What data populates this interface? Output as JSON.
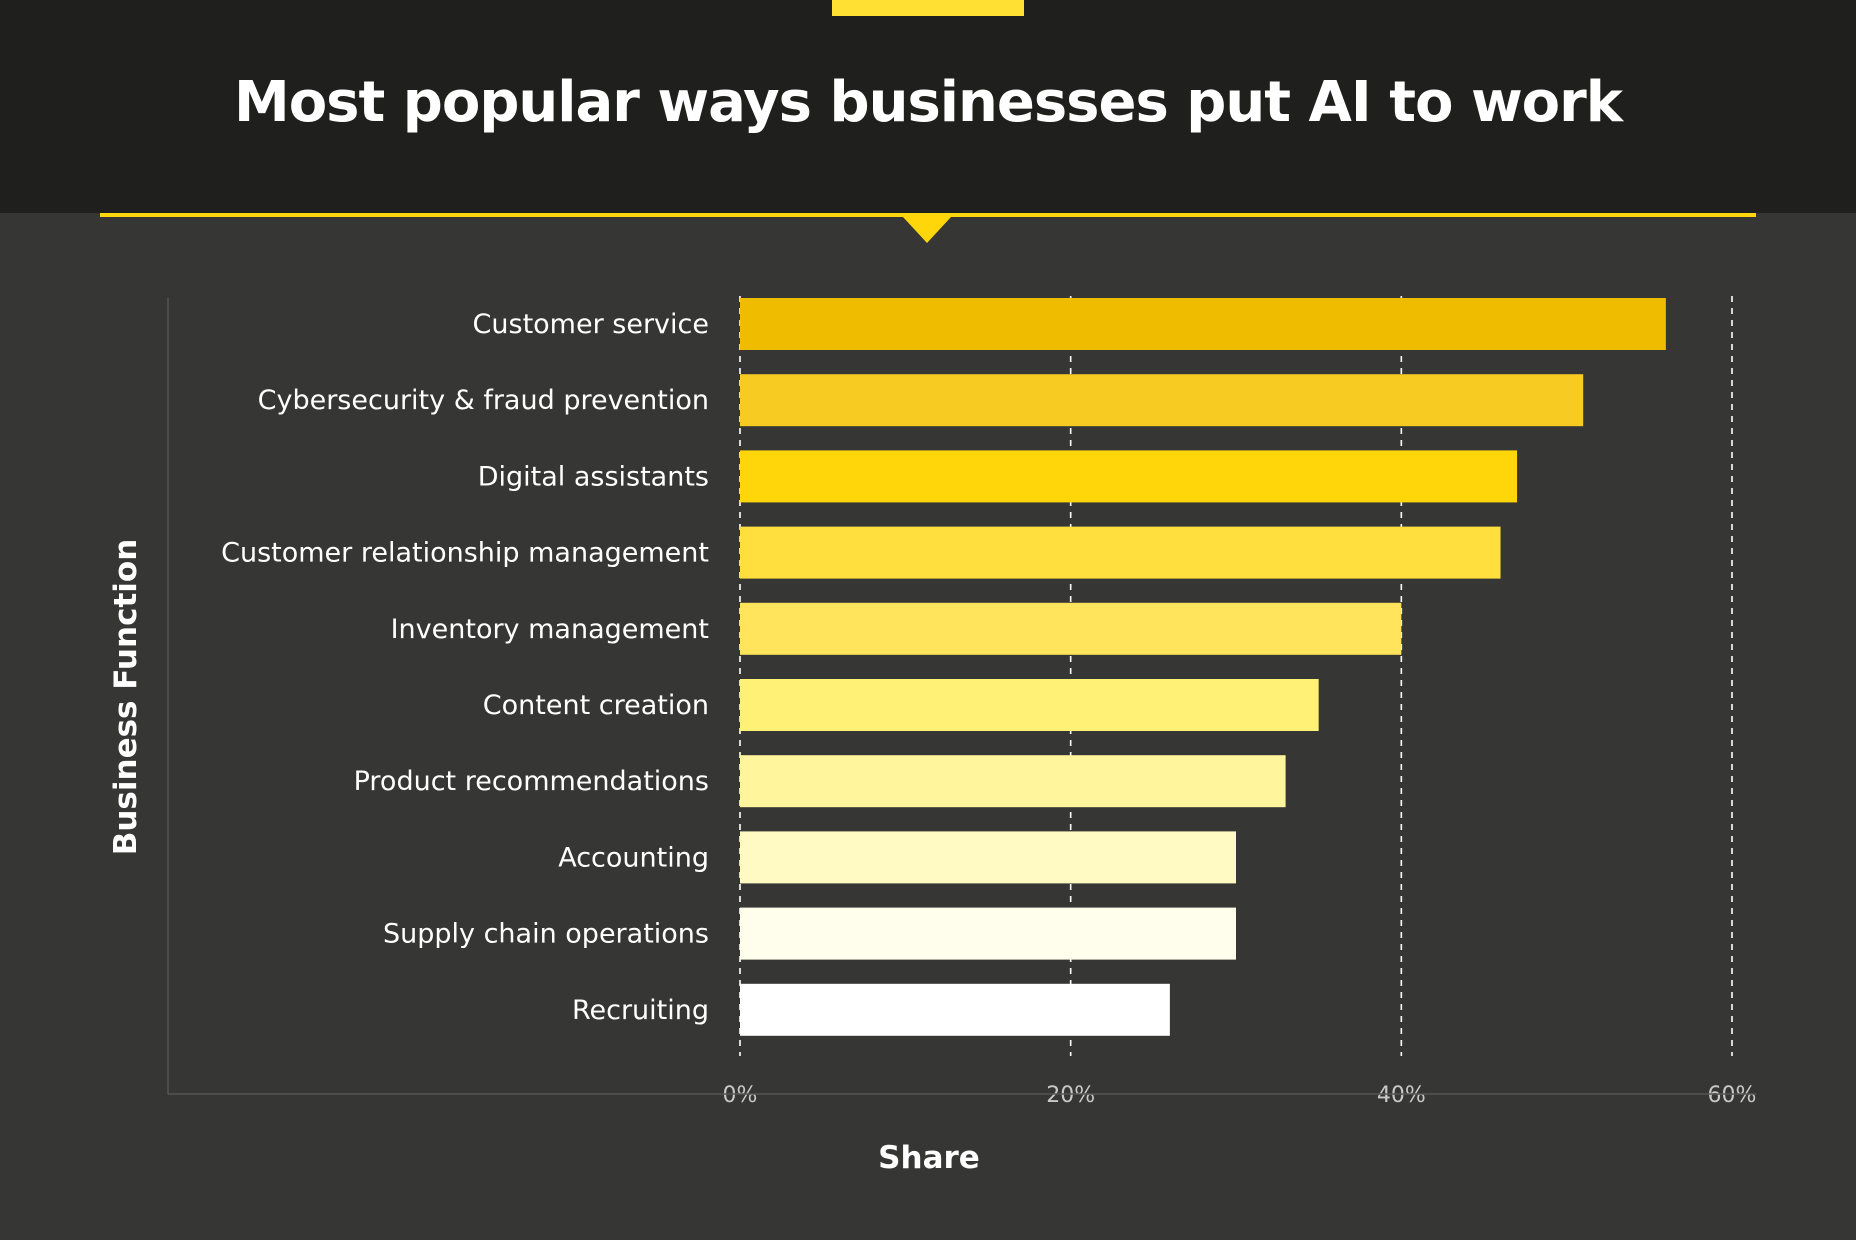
{
  "header": {
    "title": "Most popular ways businesses put AI to work",
    "accent_color": "#ffd60a",
    "background_color": "#1f201d"
  },
  "chart_data": {
    "type": "bar",
    "orientation": "horizontal",
    "title": "Most popular ways businesses put AI to work",
    "xlabel": "Share",
    "ylabel": "Business Function",
    "categories": [
      "Customer service",
      "Cybersecurity & fraud prevention",
      "Digital assistants",
      "Customer relationship management",
      "Inventory management",
      "Content creation",
      "Product recommendations",
      "Accounting",
      "Supply chain operations",
      "Recruiting"
    ],
    "values": [
      56,
      51,
      47,
      46,
      40,
      35,
      33,
      30,
      30,
      26
    ],
    "value_unit": "%",
    "xlim": [
      0,
      60
    ],
    "xticks": [
      0,
      20,
      40,
      60
    ],
    "tick_labels": [
      "0%",
      "20%",
      "40%",
      "60%"
    ],
    "grid": "vertical dashed",
    "legend": "none",
    "bar_colors": [
      "#f0bc00",
      "#f7cb21",
      "#ffd60a",
      "#ffdf3d",
      "#ffe45c",
      "#fff176",
      "#fff59d",
      "#fff9c4",
      "#fffdeb",
      "#ffffff"
    ],
    "background_color": "#363634"
  }
}
